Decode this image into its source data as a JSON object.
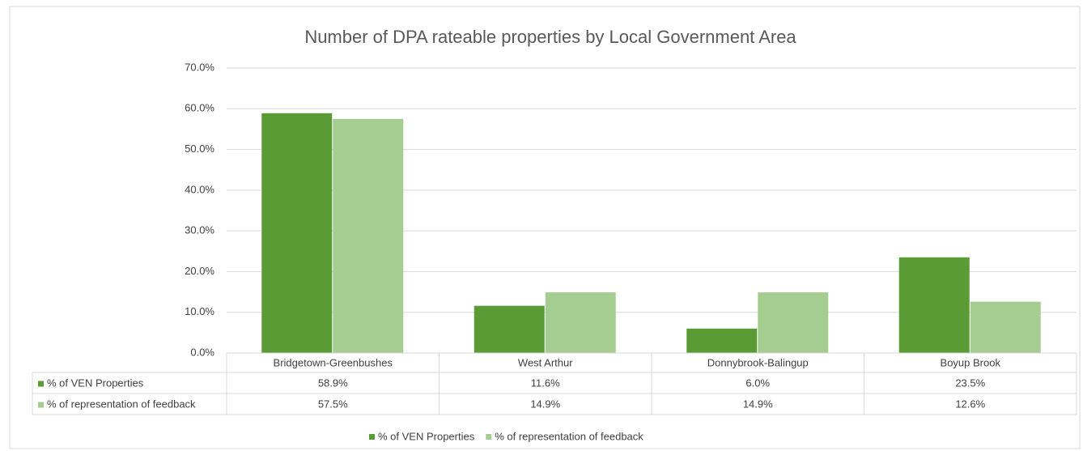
{
  "chart_data": {
    "type": "bar",
    "title": "Number of DPA rateable properties by Local Government Area",
    "categories": [
      "Bridgetown-Greenbushes",
      "West Arthur",
      "Donnybrook-Balingup",
      "Boyup Brook"
    ],
    "series": [
      {
        "name": "% of VEN Properties",
        "color": "#5b9b36",
        "values": [
          58.9,
          11.6,
          6.0,
          23.5
        ],
        "value_labels": [
          "58.9%",
          "11.6%",
          "6.0%",
          "23.5%"
        ]
      },
      {
        "name": "% of representation of feedback",
        "color": "#a6cd91",
        "values": [
          57.5,
          14.9,
          14.9,
          12.6
        ],
        "value_labels": [
          "57.5%",
          "14.9%",
          "14.9%",
          "12.6%"
        ]
      }
    ],
    "ylim": [
      0,
      70
    ],
    "yticks": [
      {
        "value": 0,
        "label": "0.0%"
      },
      {
        "value": 10,
        "label": "10.0%"
      },
      {
        "value": 20,
        "label": "20.0%"
      },
      {
        "value": 30,
        "label": "30.0%"
      },
      {
        "value": 40,
        "label": "40.0%"
      },
      {
        "value": 50,
        "label": "50.0%"
      },
      {
        "value": 60,
        "label": "60.0%"
      },
      {
        "value": 70,
        "label": "70.0%"
      }
    ],
    "grid": true,
    "legend": "bottom"
  }
}
